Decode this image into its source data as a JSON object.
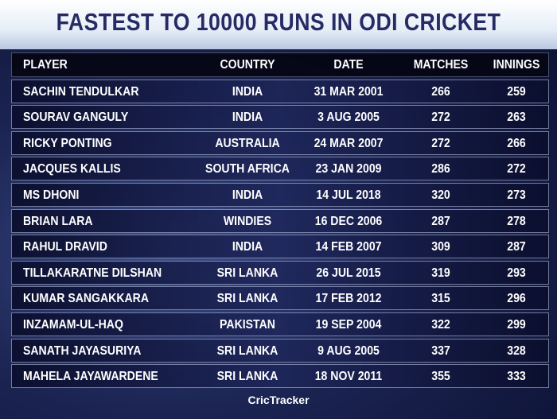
{
  "header": {
    "title": "FASTEST TO 10000 RUNS IN ODI CRICKET"
  },
  "table": {
    "columns": [
      "PLAYER",
      "COUNTRY",
      "DATE",
      "MATCHES",
      "INNINGS"
    ],
    "rows": [
      [
        "SACHIN TENDULKAR",
        "INDIA",
        "31 MAR 2001",
        266,
        259
      ],
      [
        "SOURAV GANGULY",
        "INDIA",
        "3 AUG 2005",
        272,
        263
      ],
      [
        "RICKY PONTING",
        "AUSTRALIA",
        "24 MAR 2007",
        272,
        266
      ],
      [
        "JACQUES KALLIS",
        "SOUTH AFRICA",
        "23 JAN 2009",
        286,
        272
      ],
      [
        "MS DHONI",
        "INDIA",
        "14 JUL 2018",
        320,
        273
      ],
      [
        "BRIAN LARA",
        "WINDIES",
        "16 DEC 2006",
        287,
        278
      ],
      [
        "RAHUL DRAVID",
        "INDIA",
        "14 FEB 2007",
        309,
        287
      ],
      [
        "TILLAKARATNE DILSHAN",
        "SRI LANKA",
        "26 JUL 2015",
        319,
        293
      ],
      [
        "KUMAR SANGAKKARA",
        "SRI LANKA",
        "17 FEB 2012",
        315,
        296
      ],
      [
        "INZAMAM-UL-HAQ",
        "PAKISTAN",
        "19 SEP 2004",
        322,
        299
      ],
      [
        "SANATH JAYASURIYA",
        "SRI LANKA",
        "9 AUG 2005",
        337,
        328
      ],
      [
        "MAHELA JAYAWARDENE",
        "SRI LANKA",
        "18 NOV 2011",
        355,
        333
      ]
    ]
  },
  "footer": {
    "brand": "CricTracker"
  }
}
